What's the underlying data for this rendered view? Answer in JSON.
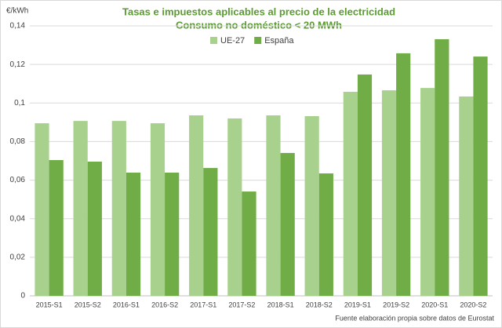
{
  "chart_data": {
    "type": "bar",
    "title": "Tasas e impuestos aplicables al precio de la electricidad",
    "subtitle": "Consumo no doméstico < 20 MWh",
    "y_label": "€/kWh",
    "source": "Fuente elaboración propia sobre datos de Eurostat",
    "categories": [
      "2015-S1",
      "2015-S2",
      "2016-S1",
      "2016-S2",
      "2017-S1",
      "2017-S2",
      "2018-S1",
      "2018-S2",
      "2019-S1",
      "2019-S2",
      "2020-S1",
      "2020-S2"
    ],
    "series": [
      {
        "name": "UE-27",
        "color": "#a9d18e",
        "values": [
          0.0895,
          0.0907,
          0.0907,
          0.0895,
          0.0936,
          0.092,
          0.0936,
          0.0932,
          0.1058,
          0.1066,
          0.1078,
          0.1034
        ]
      },
      {
        "name": "España",
        "color": "#70ad47",
        "values": [
          0.0704,
          0.0696,
          0.0639,
          0.0639,
          0.0663,
          0.0541,
          0.0741,
          0.0635,
          0.1148,
          0.1258,
          0.1331,
          0.1241
        ]
      }
    ],
    "ylim": [
      0,
      0.14
    ],
    "yticks": [
      0,
      {
        "value": 0.02,
        "label": "0,02"
      },
      {
        "value": 0.04,
        "label": "0,04"
      },
      {
        "value": 0.06,
        "label": "0,06"
      },
      {
        "value": 0.08,
        "label": "0,08"
      },
      {
        "value": 0.1,
        "label": "0,1"
      },
      {
        "value": 0.12,
        "label": "0,12"
      },
      {
        "value": 0.14,
        "label": "0,14"
      }
    ],
    "grid": true,
    "legend": "top"
  }
}
